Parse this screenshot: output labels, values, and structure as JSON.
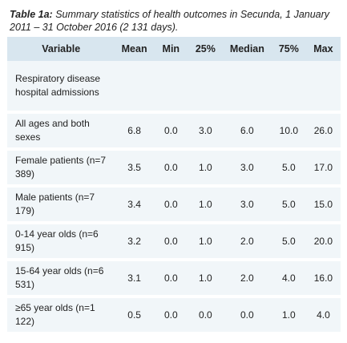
{
  "caption": {
    "label": "Table 1a:",
    "text": " Summary statistics of health outcomes in Secunda, 1 January 2011 – 31 October 2016 (2 131 days)."
  },
  "columns": [
    "Variable",
    "Mean",
    "Min",
    "25%",
    "Median",
    "75%",
    "Max"
  ],
  "section_label": "Respiratory disease hospital admissions",
  "rows": [
    {
      "label": "All ages and both sexes",
      "values": [
        "6.8",
        "0.0",
        "3.0",
        "6.0",
        "10.0",
        "26.0"
      ]
    },
    {
      "label": "Female patients (n=7 389)",
      "values": [
        "3.5",
        "0.0",
        "1.0",
        "3.0",
        "5.0",
        "17.0"
      ]
    },
    {
      "label": "Male patients (n=7 179)",
      "values": [
        "3.4",
        "0.0",
        "1.0",
        "3.0",
        "5.0",
        "15.0"
      ]
    },
    {
      "label": "0-14 year olds (n=6 915)",
      "values": [
        "3.2",
        "0.0",
        "1.0",
        "2.0",
        "5.0",
        "20.0"
      ]
    },
    {
      "label": "15-64 year olds (n=6 531)",
      "values": [
        "3.1",
        "0.0",
        "1.0",
        "2.0",
        "4.0",
        "16.0"
      ]
    },
    {
      "label": "≥65 year olds (n=1 122)",
      "values": [
        "0.5",
        "0.0",
        "0.0",
        "0.0",
        "1.0",
        "4.0"
      ]
    }
  ]
}
